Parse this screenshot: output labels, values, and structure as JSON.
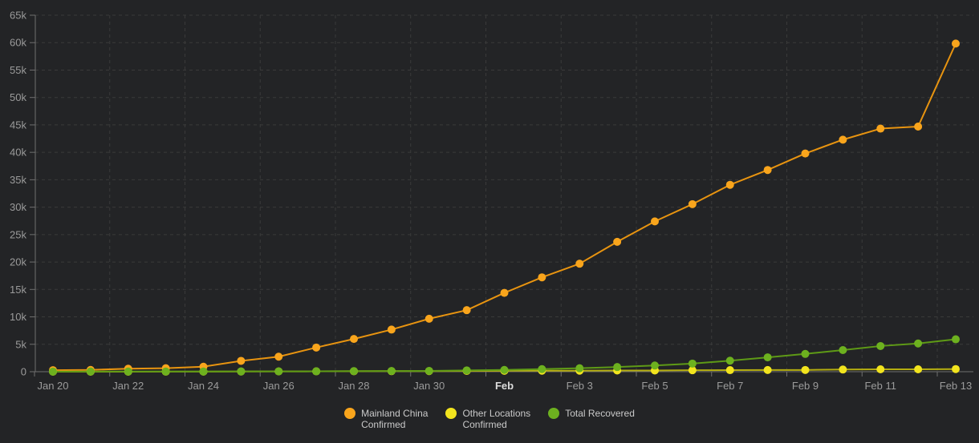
{
  "colors": {
    "background": "#232426",
    "grid": "#3a3a3a",
    "axis": "#6f6f6f",
    "tick_label": "#9b9b9b",
    "month_label": "#dcdcdc"
  },
  "chart_data": {
    "type": "line",
    "title": "",
    "xlabel": "",
    "ylabel": "",
    "ylim": [
      0,
      65000
    ],
    "grid": true,
    "legend_position": "bottom",
    "x_categories": [
      "Jan 20",
      "Jan 21",
      "Jan 22",
      "Jan 23",
      "Jan 24",
      "Jan 25",
      "Jan 26",
      "Jan 27",
      "Jan 28",
      "Jan 29",
      "Jan 30",
      "Jan 31",
      "Feb 1",
      "Feb 2",
      "Feb 3",
      "Feb 4",
      "Feb 5",
      "Feb 6",
      "Feb 7",
      "Feb 8",
      "Feb 9",
      "Feb 10",
      "Feb 11",
      "Feb 12",
      "Feb 13"
    ],
    "x_axis_labels": [
      {
        "index": 0,
        "label": "Jan 20",
        "bold": false
      },
      {
        "index": 2,
        "label": "Jan 22",
        "bold": false
      },
      {
        "index": 4,
        "label": "Jan 24",
        "bold": false
      },
      {
        "index": 6,
        "label": "Jan 26",
        "bold": false
      },
      {
        "index": 8,
        "label": "Jan 28",
        "bold": false
      },
      {
        "index": 10,
        "label": "Jan 30",
        "bold": false
      },
      {
        "index": 12,
        "label": "Feb",
        "bold": true
      },
      {
        "index": 14,
        "label": "Feb 3",
        "bold": false
      },
      {
        "index": 16,
        "label": "Feb 5",
        "bold": false
      },
      {
        "index": 18,
        "label": "Feb 7",
        "bold": false
      },
      {
        "index": 20,
        "label": "Feb 9",
        "bold": false
      },
      {
        "index": 22,
        "label": "Feb 11",
        "bold": false
      },
      {
        "index": 24,
        "label": "Feb 13",
        "bold": false
      }
    ],
    "y_ticks": [
      {
        "value": 0,
        "label": "0"
      },
      {
        "value": 5000,
        "label": "5k"
      },
      {
        "value": 10000,
        "label": "10k"
      },
      {
        "value": 15000,
        "label": "15k"
      },
      {
        "value": 20000,
        "label": "20k"
      },
      {
        "value": 25000,
        "label": "25k"
      },
      {
        "value": 30000,
        "label": "30k"
      },
      {
        "value": 35000,
        "label": "35k"
      },
      {
        "value": 40000,
        "label": "40k"
      },
      {
        "value": 45000,
        "label": "45k"
      },
      {
        "value": 50000,
        "label": "50k"
      },
      {
        "value": 55000,
        "label": "55k"
      },
      {
        "value": 60000,
        "label": "60k"
      },
      {
        "value": 65000,
        "label": "65k"
      }
    ],
    "series": [
      {
        "name": "Mainland China Confirmed",
        "line_color": "#e89410",
        "marker_color": "#f9a51c",
        "values": [
          278,
          326,
          547,
          639,
          916,
          1979,
          2737,
          4409,
          5970,
          7678,
          9658,
          11221,
          14375,
          17205,
          19693,
          23680,
          27409,
          30553,
          34075,
          36778,
          39790,
          42306,
          44327,
          44699,
          59832
        ]
      },
      {
        "name": "Other Locations Confirmed",
        "line_color": "#b5ae10",
        "marker_color": "#f2e41e",
        "values": [
          4,
          6,
          8,
          14,
          25,
          40,
          57,
          64,
          87,
          105,
          118,
          153,
          173,
          186,
          190,
          221,
          227,
          265,
          288,
          307,
          319,
          395,
          441,
          441,
          481
        ]
      },
      {
        "name": "Total Recovered",
        "line_color": "#5e9a16",
        "marker_color": "#6db11f",
        "values": [
          25,
          30,
          28,
          34,
          38,
          49,
          60,
          65,
          107,
          126,
          143,
          243,
          328,
          475,
          632,
          852,
          1124,
          1487,
          2011,
          2616,
          3244,
          3946,
          4683,
          5150,
          5911
        ]
      }
    ]
  },
  "legend": {
    "items": [
      {
        "label": "Mainland China\nConfirmed",
        "color": "#f9a51c"
      },
      {
        "label": "Other Locations\nConfirmed",
        "color": "#f2e41e"
      },
      {
        "label": "Total Recovered",
        "color": "#6db11f"
      }
    ]
  }
}
